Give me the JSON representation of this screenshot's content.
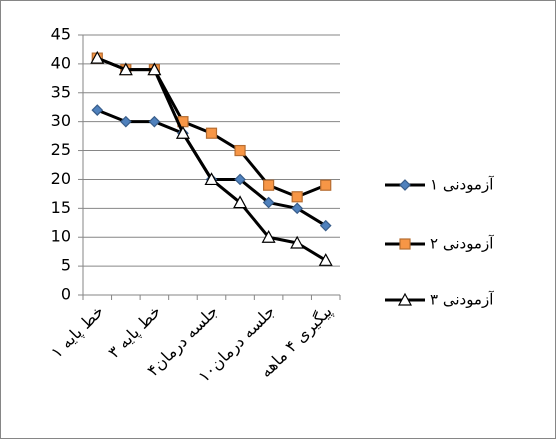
{
  "chart_data": {
    "type": "line",
    "categories": [
      "خط پایه ۱",
      null,
      "خط پایه ۳",
      null,
      "جلسه درمان۴",
      null,
      "جلسه درمان۱۰",
      null,
      "پیگیری ۴ ماهه"
    ],
    "series": [
      {
        "name": "آزمودنی ۱",
        "color": "#4f81bd",
        "marker": "diamond",
        "values": [
          32,
          30,
          30,
          28,
          20,
          20,
          16,
          15,
          12
        ]
      },
      {
        "name": "آزمودنی ۲",
        "color": "#f79646",
        "marker": "square",
        "values": [
          41,
          39,
          39,
          30,
          28,
          25,
          19,
          17,
          19
        ]
      },
      {
        "name": "آزمودنی ۳",
        "color": "#ffffff",
        "marker": "triangle",
        "values": [
          41,
          39,
          39,
          28,
          20,
          16,
          10,
          9,
          6
        ]
      }
    ],
    "ylim": [
      0,
      45
    ],
    "yticks": [
      0,
      5,
      10,
      15,
      20,
      25,
      30,
      35,
      40,
      45
    ],
    "grid": true,
    "legend": "right"
  }
}
